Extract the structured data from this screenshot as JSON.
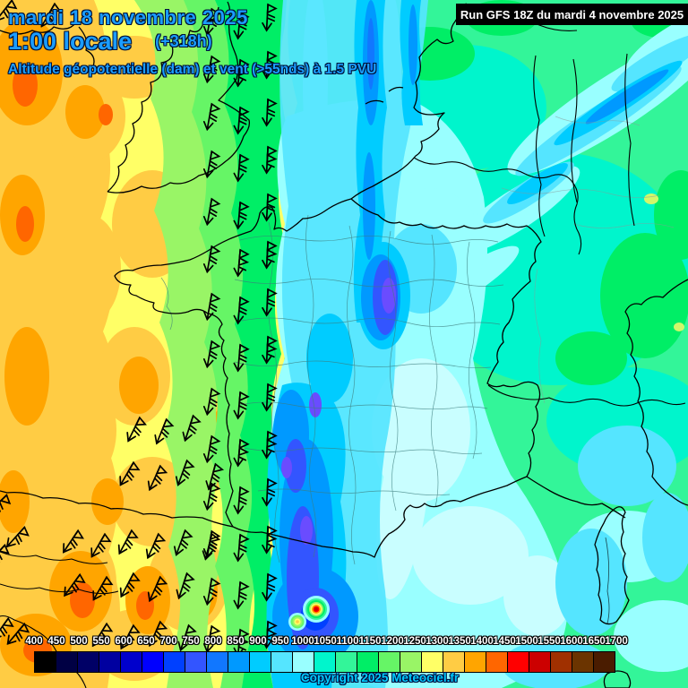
{
  "header": {
    "date": "mardi 18 novembre 2025",
    "time": "1:00 locale",
    "offset": "(+318h)",
    "subtitle": "Altitude géopotentielle (dam) et vent (>55nds) à 1.5 PVU",
    "text_color": "#1b9dff"
  },
  "run_box": {
    "label": "Run GFS 18Z du mardi 4 novembre 2025",
    "bg": "#000000",
    "text_color": "#ffffff"
  },
  "legend": {
    "values": [
      "400",
      "450",
      "500",
      "550",
      "600",
      "650",
      "700",
      "750",
      "800",
      "850",
      "900",
      "950",
      "1000",
      "1050",
      "1100",
      "1150",
      "1200",
      "1250",
      "1300",
      "1350",
      "1400",
      "1450",
      "1500",
      "1550",
      "1600",
      "1650",
      "1700"
    ],
    "colors": [
      "#000000",
      "#000044",
      "#000066",
      "#0000a0",
      "#0000cc",
      "#0000ff",
      "#0040ff",
      "#3355ff",
      "#1177ff",
      "#0099ff",
      "#00ccff",
      "#55e5ff",
      "#99ffff",
      "#00f5cc",
      "#33f599",
      "#00ee66",
      "#66f566",
      "#99f566",
      "#ffff66",
      "#ffcc44",
      "#ffa500",
      "#ff6600",
      "#ff0000",
      "#cc0000",
      "#a03000",
      "#6b3400",
      "#4a1c00"
    ],
    "label_color": "#ffffff"
  },
  "footer": {
    "copyright": "Copyright 2025 Meteociel.fr",
    "text_color": "#00ccff"
  },
  "map": {
    "coast_color": "#000000",
    "border_color": "#000000",
    "departement_color": "#3d7d7d",
    "germany_region_color": "#8a9a9a",
    "wind_barb_color": "#000000",
    "extra_colors": {
      "violet": "#6a4cff",
      "pale": "#c9feff",
      "deep_blue": "#0040ff",
      "soft_yellow_green": "#d2f76a"
    }
  }
}
